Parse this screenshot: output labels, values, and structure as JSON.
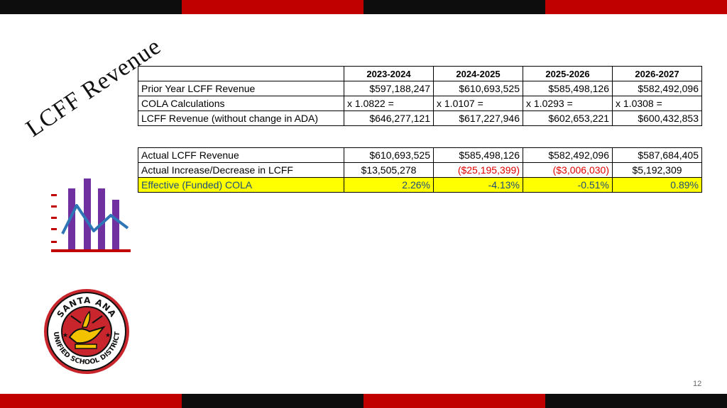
{
  "slide": {
    "title": "LCFF Revenue",
    "page_number": "12"
  },
  "table1": {
    "headers": [
      "",
      "2023-2024",
      "2024-2025",
      "2025-2026",
      "2026-2027"
    ],
    "rows": [
      {
        "label": "Prior Year LCFF Revenue",
        "values": [
          "$597,188,247",
          "$610,693,525",
          "$585,498,126",
          "$582,492,096"
        ]
      },
      {
        "label": "COLA Calculations",
        "values": [
          "x 1.0822 =",
          "x 1.0107 =",
          "x 1.0293 =",
          "x 1.0308 ="
        ]
      },
      {
        "label": "LCFF Revenue (without change in ADA)",
        "values": [
          "$646,277,121",
          "$617,227,946",
          "$602,653,221",
          "$600,432,853"
        ]
      }
    ]
  },
  "table2": {
    "rows": [
      {
        "label": "Actual LCFF Revenue",
        "values": [
          "$610,693,525",
          "$585,498,126",
          "$582,492,096",
          "$587,684,405"
        ]
      },
      {
        "label": "Actual Increase/Decrease in LCFF",
        "values": [
          "$13,505,278",
          "($25,195,399)",
          "($3,006,030)",
          "$5,192,309"
        ]
      },
      {
        "label": "Effective (Funded) COLA",
        "values": [
          "2.26%",
          "-4.13%",
          "-0.51%",
          "0.89%"
        ]
      }
    ]
  },
  "logo": {
    "top_text": "SANTA ANA",
    "bottom_text": "UNIFIED SCHOOL DISTRICT"
  },
  "colors": {
    "bar_black": "#0d0d0d",
    "bar_red": "#c00000",
    "highlight": "#ffff00",
    "negative": "#e00000",
    "icon_purple": "#7030a0",
    "icon_blue": "#2e75b6"
  },
  "icons": {
    "chart": "bar-chart-trend-icon",
    "logo": "school-district-seal-icon"
  }
}
